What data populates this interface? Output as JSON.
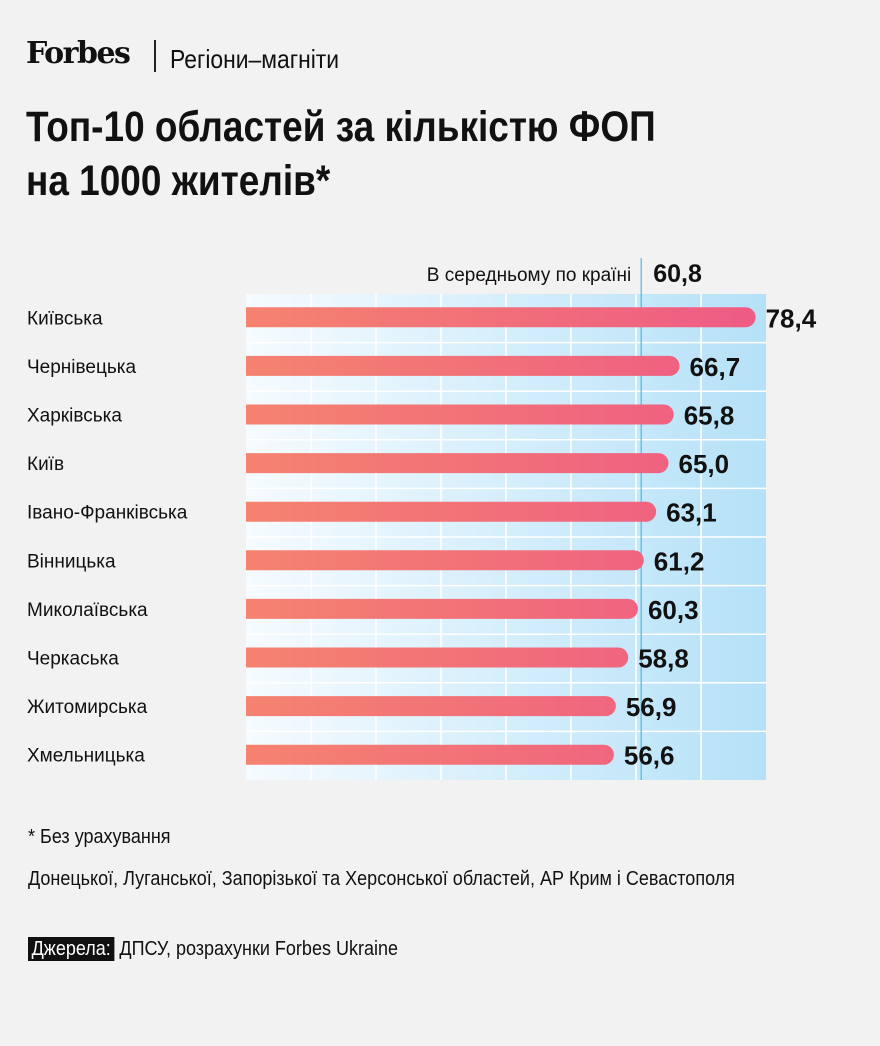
{
  "header": {
    "logo": "Forbes",
    "rubric": "Регіони–магніти"
  },
  "title_line1": "Топ-10 областей за кількістю ФОП",
  "title_line2": "на 1000 жителів*",
  "chart_data": {
    "type": "bar",
    "orientation": "horizontal",
    "title": "Топ-10 областей за кількістю ФОП на 1000 жителів*",
    "categories": [
      "Київська",
      "Чернівецька",
      "Харківська",
      "Київ",
      "Івано-Франківська",
      "Вінницька",
      "Миколаївська",
      "Черкаська",
      "Житомирська",
      "Хмельницька"
    ],
    "values": [
      78.4,
      66.7,
      65.8,
      65.0,
      63.1,
      61.2,
      60.3,
      58.8,
      56.9,
      56.6
    ],
    "value_labels": [
      "78,4",
      "66,7",
      "65,8",
      "65,0",
      "63,1",
      "61,2",
      "60,3",
      "58,8",
      "56,9",
      "56,6"
    ],
    "reference_line": {
      "label": "В середньому по країні",
      "value": 60.8,
      "value_label": "60,8"
    },
    "xlim": [
      0,
      80
    ],
    "grid": true,
    "colors": {
      "bar_start": "#f5836f",
      "bar_end": "#ee5a85",
      "ref_line": "#4fb6e0",
      "bg_start": "#f6fbff",
      "bg_end": "#b5e1f8"
    }
  },
  "footnote_line1": "* Без урахування",
  "footnote_line2": "Донецької, Луганської, Запорізької та Херсонської областей, АР Крим і Севастополя",
  "source": {
    "label": "Джерела:",
    "text": " ДПСУ, розрахунки Forbes Ukraine"
  }
}
